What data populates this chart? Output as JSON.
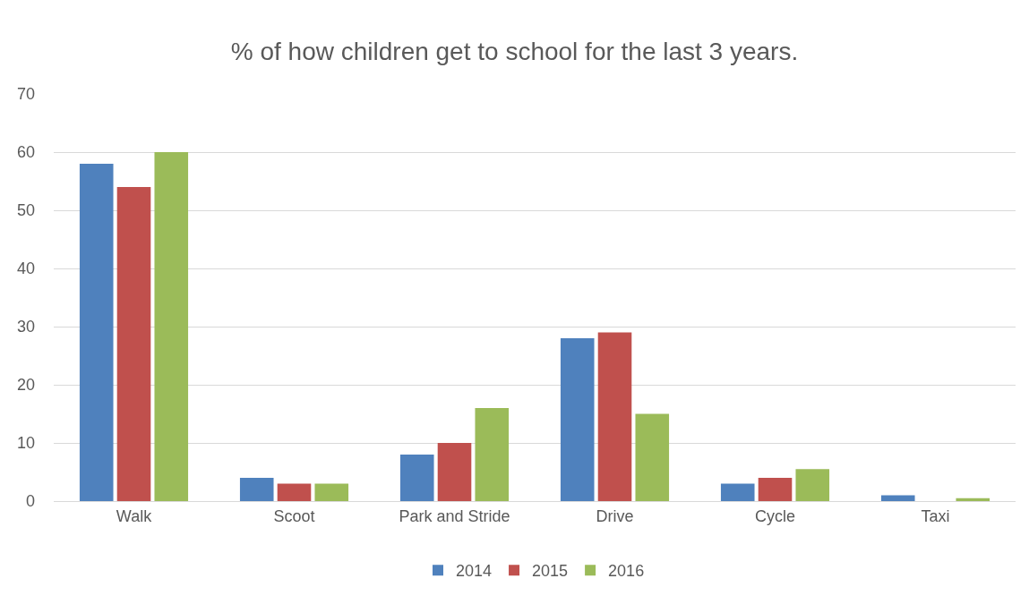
{
  "chart_data": {
    "type": "bar",
    "title": "% of how children get to school for the last 3 years.",
    "categories": [
      "Walk",
      "Scoot",
      "Park and Stride",
      "Drive",
      "Cycle",
      "Taxi"
    ],
    "series": [
      {
        "name": "2014",
        "color": "#4f81bd",
        "values": [
          58,
          4,
          8,
          28,
          3,
          1
        ]
      },
      {
        "name": "2015",
        "color": "#c0504d",
        "values": [
          54,
          3,
          10,
          29,
          4,
          0
        ]
      },
      {
        "name": "2016",
        "color": "#9bbb59",
        "values": [
          60,
          3,
          16,
          15,
          5.5,
          0.5
        ]
      }
    ],
    "ylim": [
      0,
      70
    ],
    "yticks": [
      0,
      10,
      20,
      30,
      40,
      50,
      60,
      70
    ],
    "grid": "y",
    "legend": "bottom"
  }
}
